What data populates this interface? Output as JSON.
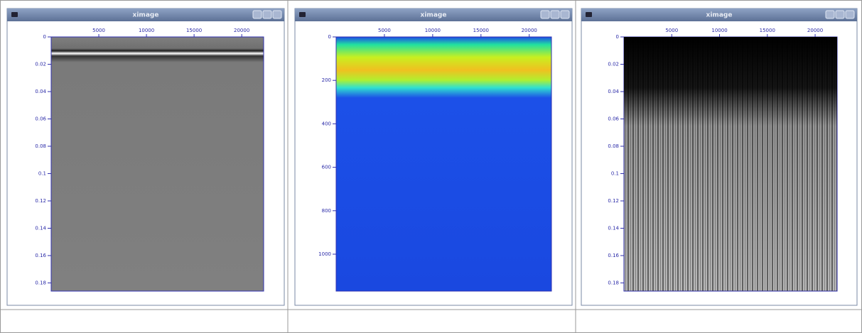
{
  "windows": [
    {
      "title": "ximage",
      "xlim": [
        0,
        22300
      ],
      "xticks": [
        5000,
        10000,
        15000,
        20000
      ],
      "ylim": [
        0,
        0.186
      ],
      "yticks": [
        0,
        0.02,
        0.04,
        0.06,
        0.08,
        0.1,
        0.12,
        0.14,
        0.16,
        0.18
      ]
    },
    {
      "title": "ximage",
      "xlim": [
        0,
        22300
      ],
      "xticks": [
        5000,
        10000,
        15000,
        20000
      ],
      "ylim": [
        0,
        1170
      ],
      "yticks": [
        0,
        200,
        400,
        600,
        800,
        1000
      ]
    },
    {
      "title": "ximage",
      "xlim": [
        0,
        22300
      ],
      "xticks": [
        5000,
        10000,
        15000,
        20000
      ],
      "ylim": [
        0,
        0.186
      ],
      "yticks": [
        0,
        0.02,
        0.04,
        0.06,
        0.08,
        0.1,
        0.12,
        0.14,
        0.16,
        0.18
      ]
    }
  ]
}
